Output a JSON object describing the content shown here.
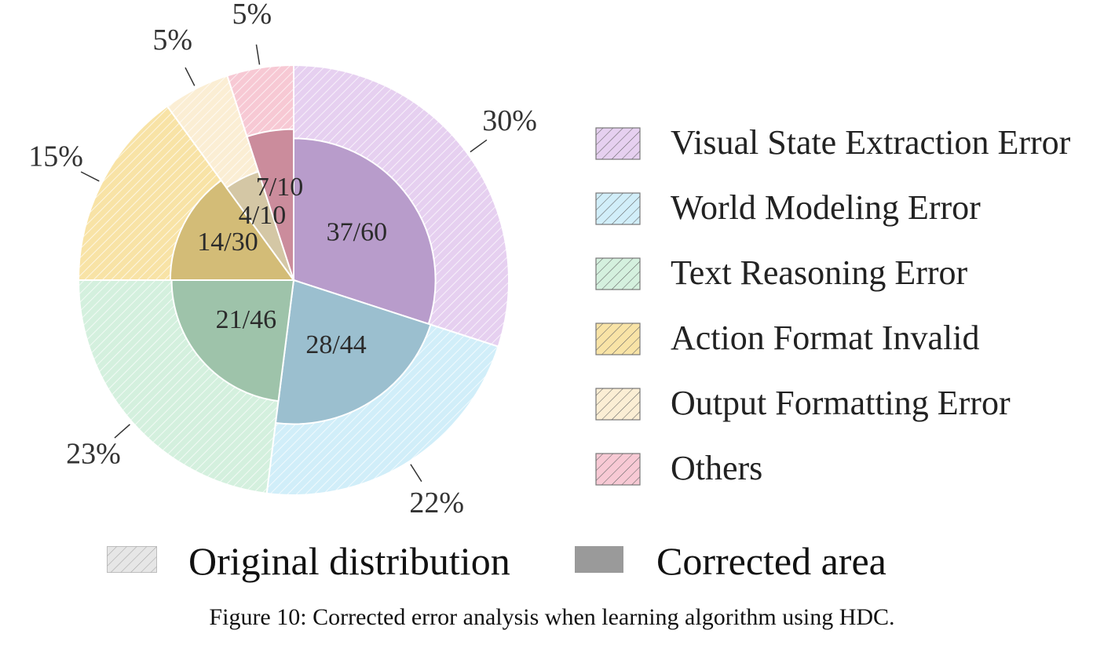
{
  "chart_data": {
    "type": "pie",
    "variant": "nested-donut",
    "title": "",
    "categories": [
      "Visual State Extraction Error",
      "World Modeling Error",
      "Text Reasoning Error",
      "Action Format Invalid",
      "Output Formatting Error",
      "Others"
    ],
    "colors": [
      "#b89ccb",
      "#9bbfcf",
      "#9ec3aa",
      "#d3bc77",
      "#d4c7a5",
      "#cb8c9c"
    ],
    "outer_colors": [
      "#e6d0f0",
      "#d1eef9",
      "#d4f0de",
      "#f8e3a6",
      "#fbeed4",
      "#f7c9d4"
    ],
    "series": [
      {
        "name": "Original distribution",
        "values": [
          30,
          22,
          23,
          15,
          5,
          5
        ],
        "labels": [
          "30%",
          "22%",
          "23%",
          "15%",
          "5%",
          "5%"
        ]
      },
      {
        "name": "Corrected area",
        "corrected": [
          37,
          28,
          21,
          14,
          4,
          7
        ],
        "totals": [
          60,
          44,
          46,
          30,
          10,
          10
        ],
        "labels": [
          "37/60",
          "28/44",
          "21/46",
          "14/30",
          "4/10",
          "7/10"
        ]
      }
    ],
    "legend": "right"
  },
  "bottom_legend": {
    "original": {
      "label": "Original distribution",
      "color": "#e6e6e6"
    },
    "corrected": {
      "label": "Corrected area",
      "color": "#9a9a9a"
    }
  },
  "caption": "Figure 10: Corrected error analysis when learning algorithm using HDC."
}
